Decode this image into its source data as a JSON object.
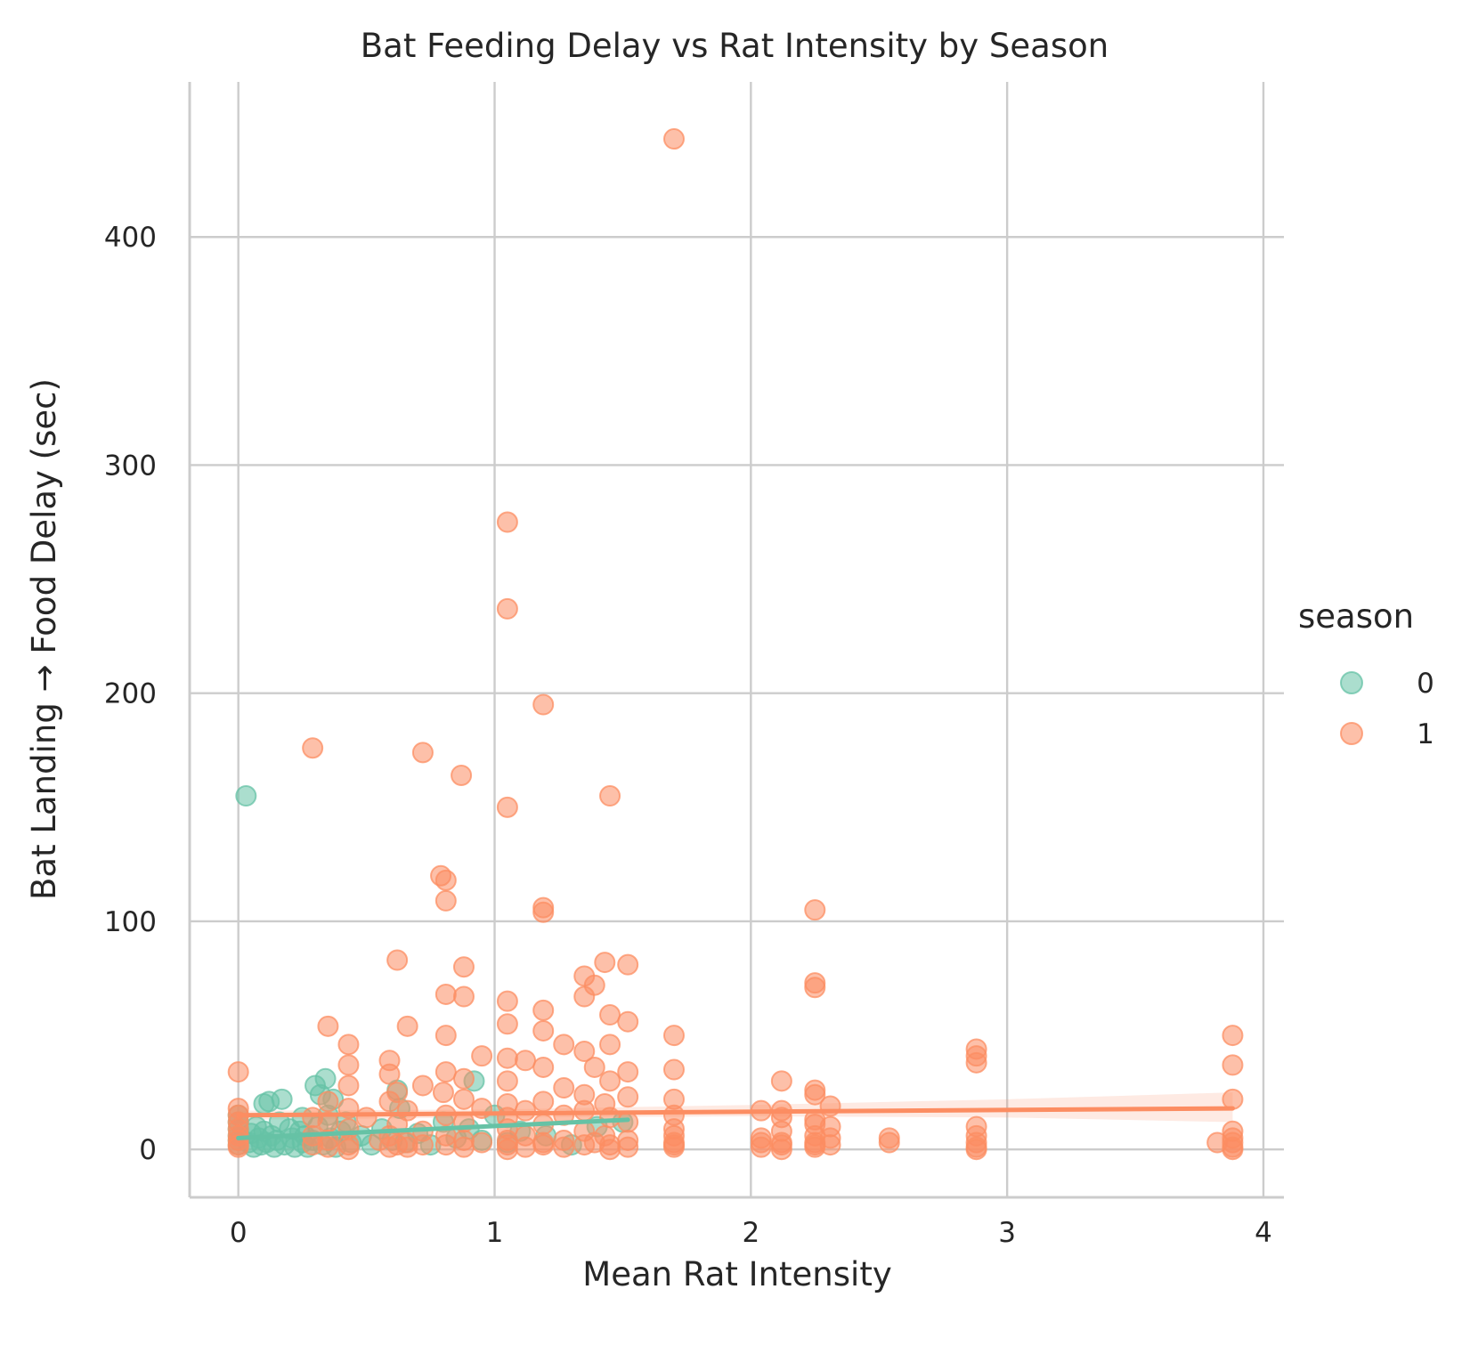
{
  "chart_data": {
    "type": "scatter",
    "title": "Bat Feeding Delay vs Rat Intensity by Season",
    "xlabel": "Mean Rat Intensity",
    "ylabel": "Bat Landing → Food Delay (sec)",
    "xlim": [
      -0.19,
      4.08
    ],
    "ylim": [
      -21,
      468
    ],
    "xticks": [
      "0",
      "1",
      "2",
      "3",
      "4"
    ],
    "yticks": [
      "0",
      "100",
      "200",
      "300",
      "400"
    ],
    "grid": true,
    "legend": {
      "title": "season",
      "position": "right"
    },
    "series": [
      {
        "name": "0",
        "color": "#66c2a5",
        "points": [
          [
            0.0,
            2
          ],
          [
            0.0,
            4
          ],
          [
            0.0,
            6
          ],
          [
            0.0,
            9
          ],
          [
            0.0,
            12
          ],
          [
            0.0,
            15
          ],
          [
            0.03,
            155
          ],
          [
            0.04,
            3
          ],
          [
            0.05,
            7
          ],
          [
            0.06,
            1
          ],
          [
            0.07,
            10
          ],
          [
            0.08,
            5
          ],
          [
            0.09,
            2
          ],
          [
            0.1,
            20
          ],
          [
            0.1,
            8
          ],
          [
            0.11,
            3
          ],
          [
            0.12,
            21
          ],
          [
            0.13,
            6
          ],
          [
            0.14,
            1
          ],
          [
            0.15,
            4
          ],
          [
            0.16,
            12
          ],
          [
            0.17,
            22
          ],
          [
            0.18,
            2
          ],
          [
            0.2,
            9
          ],
          [
            0.21,
            5
          ],
          [
            0.22,
            1
          ],
          [
            0.24,
            8
          ],
          [
            0.25,
            14
          ],
          [
            0.25,
            3
          ],
          [
            0.26,
            6
          ],
          [
            0.27,
            1
          ],
          [
            0.29,
            4
          ],
          [
            0.3,
            28
          ],
          [
            0.31,
            10
          ],
          [
            0.32,
            24
          ],
          [
            0.33,
            2
          ],
          [
            0.34,
            31
          ],
          [
            0.35,
            15
          ],
          [
            0.36,
            5
          ],
          [
            0.37,
            22
          ],
          [
            0.38,
            1
          ],
          [
            0.4,
            8
          ],
          [
            0.42,
            12
          ],
          [
            0.44,
            3
          ],
          [
            0.48,
            6
          ],
          [
            0.52,
            2
          ],
          [
            0.56,
            9
          ],
          [
            0.6,
            4
          ],
          [
            0.62,
            26
          ],
          [
            0.63,
            18
          ],
          [
            0.65,
            3
          ],
          [
            0.7,
            7
          ],
          [
            0.75,
            2
          ],
          [
            0.8,
            12
          ],
          [
            0.85,
            5
          ],
          [
            0.9,
            9
          ],
          [
            0.92,
            30
          ],
          [
            0.95,
            4
          ],
          [
            1.0,
            15
          ],
          [
            1.05,
            3
          ],
          [
            1.1,
            8
          ],
          [
            1.2,
            6
          ],
          [
            1.3,
            2
          ],
          [
            1.4,
            10
          ],
          [
            1.5,
            12
          ]
        ],
        "trend": {
          "x": [
            0.0,
            1.52
          ],
          "y": [
            5,
            13
          ]
        }
      },
      {
        "name": "1",
        "color": "#fc8d62",
        "points": [
          [
            1.7,
            443
          ],
          [
            1.05,
            275
          ],
          [
            1.05,
            237
          ],
          [
            1.19,
            195
          ],
          [
            0.29,
            176
          ],
          [
            0.72,
            174
          ],
          [
            0.87,
            164
          ],
          [
            1.45,
            155
          ],
          [
            1.05,
            150
          ],
          [
            0.79,
            120
          ],
          [
            0.81,
            118
          ],
          [
            0.81,
            109
          ],
          [
            1.19,
            106
          ],
          [
            1.19,
            104
          ],
          [
            2.25,
            105
          ],
          [
            0.62,
            83
          ],
          [
            1.43,
            82
          ],
          [
            1.52,
            81
          ],
          [
            0.88,
            80
          ],
          [
            1.35,
            76
          ],
          [
            2.25,
            73
          ],
          [
            2.25,
            71
          ],
          [
            1.39,
            72
          ],
          [
            0.81,
            68
          ],
          [
            0.88,
            67
          ],
          [
            1.35,
            67
          ],
          [
            1.05,
            65
          ],
          [
            1.19,
            61
          ],
          [
            1.45,
            59
          ],
          [
            1.52,
            56
          ],
          [
            1.05,
            55
          ],
          [
            0.35,
            54
          ],
          [
            0.66,
            54
          ],
          [
            1.19,
            52
          ],
          [
            1.7,
            50
          ],
          [
            3.88,
            50
          ],
          [
            0.81,
            50
          ],
          [
            0.43,
            46
          ],
          [
            1.27,
            46
          ],
          [
            1.45,
            46
          ],
          [
            2.88,
            44
          ],
          [
            2.88,
            41
          ],
          [
            1.35,
            43
          ],
          [
            0.95,
            41
          ],
          [
            1.05,
            40
          ],
          [
            2.88,
            38
          ],
          [
            3.88,
            37
          ],
          [
            0.43,
            37
          ],
          [
            0.59,
            39
          ],
          [
            1.12,
            39
          ],
          [
            1.19,
            36
          ],
          [
            1.39,
            36
          ],
          [
            0.0,
            34
          ],
          [
            0.59,
            33
          ],
          [
            0.81,
            34
          ],
          [
            1.52,
            34
          ],
          [
            1.7,
            35
          ],
          [
            0.88,
            31
          ],
          [
            1.05,
            30
          ],
          [
            1.45,
            30
          ],
          [
            2.12,
            30
          ],
          [
            0.43,
            28
          ],
          [
            0.72,
            28
          ],
          [
            1.27,
            27
          ],
          [
            2.25,
            26
          ],
          [
            2.25,
            24
          ],
          [
            0.62,
            25
          ],
          [
            0.8,
            25
          ],
          [
            1.35,
            24
          ],
          [
            1.52,
            23
          ],
          [
            1.7,
            22
          ],
          [
            3.88,
            22
          ],
          [
            0.35,
            21
          ],
          [
            0.59,
            21
          ],
          [
            0.88,
            22
          ],
          [
            1.05,
            20
          ],
          [
            1.19,
            21
          ],
          [
            1.43,
            20
          ],
          [
            2.31,
            19
          ],
          [
            0.0,
            18
          ],
          [
            0.43,
            18
          ],
          [
            0.66,
            17
          ],
          [
            0.95,
            18
          ],
          [
            1.12,
            17
          ],
          [
            1.35,
            17
          ],
          [
            2.04,
            17
          ],
          [
            2.12,
            17
          ],
          [
            0.0,
            15
          ],
          [
            0.29,
            14
          ],
          [
            0.5,
            14
          ],
          [
            0.81,
            15
          ],
          [
            1.05,
            14
          ],
          [
            1.27,
            15
          ],
          [
            1.45,
            14
          ],
          [
            1.7,
            15
          ],
          [
            2.12,
            14
          ],
          [
            2.25,
            13
          ],
          [
            0.0,
            12
          ],
          [
            0.35,
            12
          ],
          [
            0.62,
            11
          ],
          [
            0.88,
            12
          ],
          [
            1.19,
            11
          ],
          [
            1.52,
            12
          ],
          [
            2.25,
            11
          ],
          [
            2.31,
            10
          ],
          [
            2.88,
            10
          ],
          [
            0.0,
            9
          ],
          [
            0.43,
            9
          ],
          [
            0.72,
            8
          ],
          [
            1.05,
            9
          ],
          [
            1.35,
            8
          ],
          [
            1.7,
            9
          ],
          [
            2.12,
            8
          ],
          [
            3.88,
            8
          ],
          [
            0.0,
            6
          ],
          [
            0.29,
            6
          ],
          [
            0.59,
            6
          ],
          [
            0.81,
            6
          ],
          [
            1.12,
            6
          ],
          [
            1.43,
            6
          ],
          [
            1.7,
            6
          ],
          [
            2.04,
            5
          ],
          [
            2.25,
            6
          ],
          [
            2.31,
            5
          ],
          [
            2.54,
            5
          ],
          [
            2.88,
            6
          ],
          [
            3.88,
            5
          ],
          [
            0.0,
            4
          ],
          [
            0.35,
            4
          ],
          [
            0.55,
            4
          ],
          [
            0.66,
            3
          ],
          [
            0.88,
            4
          ],
          [
            0.95,
            3
          ],
          [
            1.05,
            4
          ],
          [
            1.19,
            3
          ],
          [
            1.27,
            4
          ],
          [
            1.39,
            3
          ],
          [
            1.52,
            4
          ],
          [
            1.7,
            3
          ],
          [
            2.04,
            3
          ],
          [
            2.12,
            3
          ],
          [
            2.25,
            3
          ],
          [
            2.54,
            3
          ],
          [
            2.88,
            3
          ],
          [
            3.82,
            3
          ],
          [
            3.88,
            3
          ],
          [
            0.0,
            2
          ],
          [
            0.29,
            2
          ],
          [
            0.43,
            2
          ],
          [
            0.62,
            2
          ],
          [
            0.72,
            2
          ],
          [
            0.81,
            2
          ],
          [
            1.05,
            2
          ],
          [
            1.19,
            2
          ],
          [
            1.35,
            2
          ],
          [
            1.45,
            2
          ],
          [
            1.7,
            2
          ],
          [
            2.12,
            2
          ],
          [
            2.25,
            2
          ],
          [
            2.31,
            2
          ],
          [
            0.0,
            1
          ],
          [
            0.35,
            1
          ],
          [
            0.59,
            1
          ],
          [
            0.66,
            1
          ],
          [
            0.88,
            1
          ],
          [
            1.12,
            1
          ],
          [
            1.27,
            1
          ],
          [
            1.52,
            1
          ],
          [
            1.7,
            1
          ],
          [
            2.04,
            1
          ],
          [
            2.25,
            1
          ],
          [
            2.88,
            1
          ],
          [
            3.88,
            1
          ],
          [
            0.43,
            0
          ],
          [
            1.05,
            0
          ],
          [
            1.45,
            0
          ],
          [
            2.12,
            0
          ],
          [
            2.88,
            0
          ],
          [
            3.88,
            0
          ]
        ],
        "trend": {
          "x": [
            0.0,
            3.88
          ],
          "y": [
            15,
            18
          ]
        },
        "band": {
          "x": [
            0.0,
            1.0,
            2.0,
            3.0,
            3.88
          ],
          "upper": [
            17,
            17.5,
            19.5,
            22,
            25
          ],
          "lower": [
            13,
            14,
            14.5,
            14,
            12
          ]
        }
      }
    ]
  }
}
